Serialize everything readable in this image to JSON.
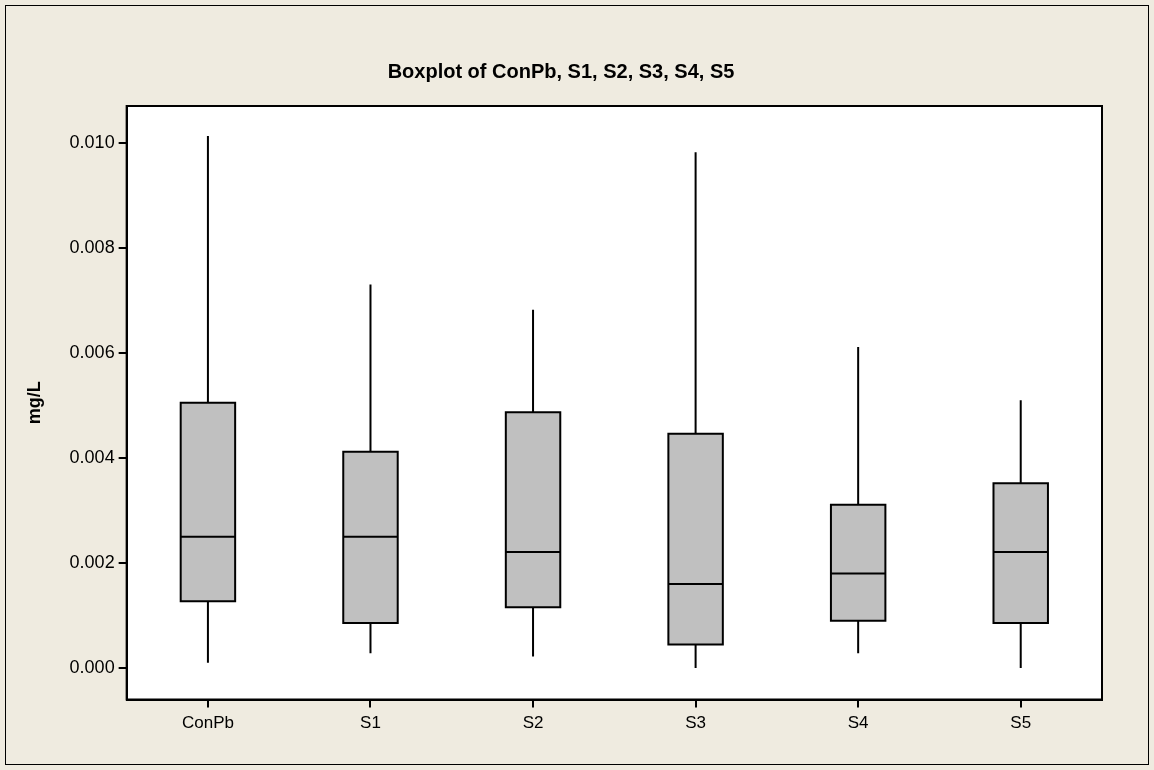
{
  "chart_data": {
    "type": "box",
    "title": "Boxplot of ConPb, S1, S2, S3, S4, S5",
    "ylabel": "mg/L",
    "categories": [
      "ConPb",
      "S1",
      "S2",
      "S3",
      "S4",
      "S5"
    ],
    "color": "#c0c0c0",
    "boxes": [
      {
        "low": 0.0001,
        "q1": 0.00127,
        "median": 0.0025,
        "q3": 0.00505,
        "high": 0.01013
      },
      {
        "low": 0.00028,
        "q1": 0.00086,
        "median": 0.0025,
        "q3": 0.00412,
        "high": 0.0073
      },
      {
        "low": 0.00022,
        "q1": 0.00116,
        "median": 0.00221,
        "q3": 0.00487,
        "high": 0.00682
      },
      {
        "low": 0.0,
        "q1": 0.00045,
        "median": 0.0016,
        "q3": 0.00446,
        "high": 0.00982
      },
      {
        "low": 0.00028,
        "q1": 0.0009,
        "median": 0.0018,
        "q3": 0.00311,
        "high": 0.00611
      },
      {
        "low": 0.0,
        "q1": 0.00086,
        "median": 0.00221,
        "q3": 0.00352,
        "high": 0.0051
      }
    ],
    "ylim": [
      -0.0006,
      0.0107
    ],
    "yticks": [
      {
        "value": 0,
        "label": "0.000"
      },
      {
        "value": 0.002,
        "label": "0.002"
      },
      {
        "value": 0.004,
        "label": "0.004"
      },
      {
        "value": 0.006,
        "label": "0.006"
      },
      {
        "value": 0.008,
        "label": "0.008"
      },
      {
        "value": 0.01,
        "label": "0.010"
      }
    ],
    "grid": false
  }
}
